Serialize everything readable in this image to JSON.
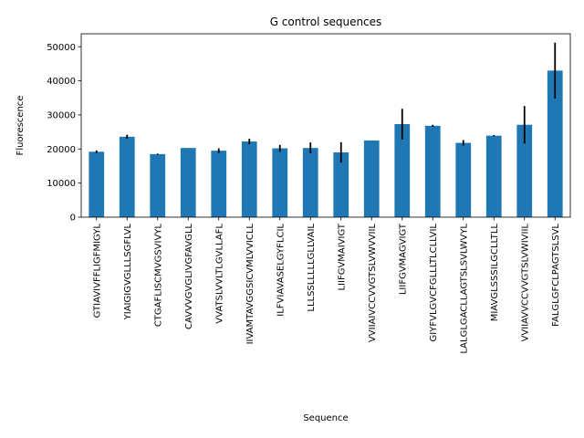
{
  "chart_data": {
    "type": "bar",
    "title": "G control sequences",
    "xlabel": "Sequence",
    "ylabel": "Fluorescence",
    "ylim": [
      0,
      53800
    ],
    "yticks": [
      0,
      10000,
      20000,
      30000,
      40000,
      50000
    ],
    "grid": false,
    "bar_color": "#1f77b4",
    "error_color": "#000000",
    "categories": [
      "GTIAVIVFFLIGFMIGYL",
      "YIAIGIGVGLLLSGFLVL",
      "CTGAFLISCMVGSVIVYL",
      "CAVVVGVGLIVGFAVGLL",
      "VVATSLVVLTLGVLLAFL",
      "IIVAMTAVGGSICVMLVVICLL",
      "ILFVIAVASELGYFLCIL",
      "LLLSSLLLLLGLLVAIL",
      "LIIFGVMAIVIGT",
      "VVIIAIVCCVVGTSLVWVVIIL",
      "LIIFGVMAGVIGT",
      "GIYFVLGVCFGLLLTLCLLVIL",
      "LALGLGACLLAGTSLSVLWVYL",
      "MIAVGLSSSILGCLLTLL",
      "VVIIAVVCCVVGTSLVWIVIIL",
      "FALGLGFCLPAGTSLSVL"
    ],
    "values": [
      19200,
      23600,
      18500,
      20300,
      19500,
      22200,
      20200,
      20300,
      19000,
      22500,
      27300,
      26800,
      21800,
      23900,
      27100,
      43000
    ],
    "errors": [
      400,
      600,
      150,
      0,
      700,
      800,
      1000,
      1600,
      3000,
      0,
      4500,
      300,
      800,
      200,
      5500,
      8200
    ]
  }
}
